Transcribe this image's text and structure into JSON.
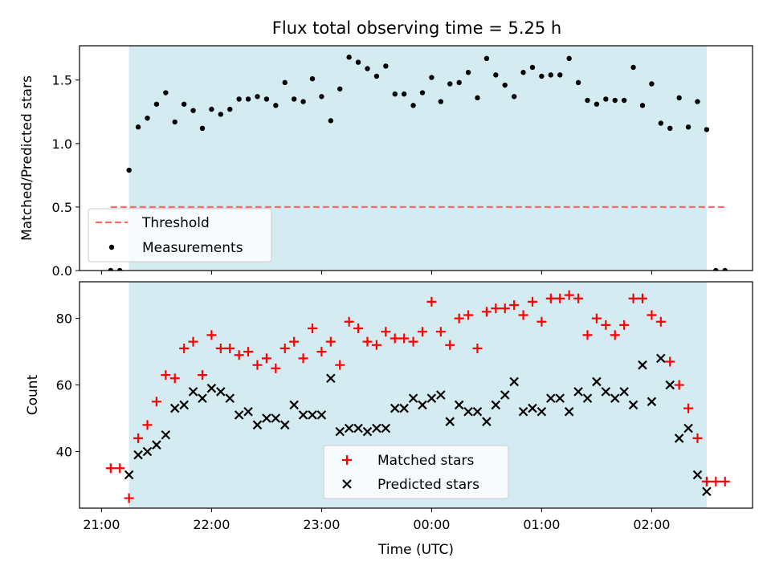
{
  "chart_data": [
    {
      "type": "scatter",
      "title": "Flux total observing time = 5.25 h",
      "xlabel": "",
      "ylabel": "Matched/Predicted stars",
      "ylim": [
        0,
        1.77
      ],
      "yticks": [
        "0.0",
        "0.5",
        "1.0",
        "1.5"
      ],
      "xlim": [
        "20:48",
        "02:55"
      ],
      "xticks_shown": false,
      "observing_window": [
        "21:15",
        "02:30"
      ],
      "shade_color": "#add8e6",
      "threshold": {
        "name": "Threshold",
        "value": 0.5,
        "x": [
          "21:05",
          "02:40"
        ],
        "color": "#ff6b6b",
        "style": "dashed"
      },
      "legend": {
        "placement": "lower-left",
        "entries": [
          "Threshold",
          "Measurements"
        ]
      },
      "series": [
        {
          "name": "Measurements",
          "color": "#000000",
          "marker": "dot",
          "points": [
            [
              "21:05",
              0.0
            ],
            [
              "21:10",
              0.0
            ],
            [
              "21:15",
              0.79
            ],
            [
              "21:20",
              1.13
            ],
            [
              "21:25",
              1.2
            ],
            [
              "21:30",
              1.31
            ],
            [
              "21:35",
              1.4
            ],
            [
              "21:40",
              1.17
            ],
            [
              "21:45",
              1.31
            ],
            [
              "21:50",
              1.26
            ],
            [
              "21:55",
              1.12
            ],
            [
              "22:00",
              1.27
            ],
            [
              "22:05",
              1.23
            ],
            [
              "22:10",
              1.27
            ],
            [
              "22:15",
              1.35
            ],
            [
              "22:20",
              1.35
            ],
            [
              "22:25",
              1.37
            ],
            [
              "22:30",
              1.35
            ],
            [
              "22:35",
              1.3
            ],
            [
              "22:40",
              1.48
            ],
            [
              "22:45",
              1.35
            ],
            [
              "22:50",
              1.33
            ],
            [
              "22:55",
              1.51
            ],
            [
              "23:00",
              1.37
            ],
            [
              "23:05",
              1.18
            ],
            [
              "23:10",
              1.43
            ],
            [
              "23:15",
              1.68
            ],
            [
              "23:20",
              1.64
            ],
            [
              "23:25",
              1.59
            ],
            [
              "23:30",
              1.53
            ],
            [
              "23:35",
              1.61
            ],
            [
              "23:40",
              1.39
            ],
            [
              "23:45",
              1.39
            ],
            [
              "23:50",
              1.3
            ],
            [
              "23:55",
              1.4
            ],
            [
              "00:00",
              1.52
            ],
            [
              "00:05",
              1.33
            ],
            [
              "00:10",
              1.47
            ],
            [
              "00:15",
              1.48
            ],
            [
              "00:20",
              1.56
            ],
            [
              "00:25",
              1.36
            ],
            [
              "00:30",
              1.67
            ],
            [
              "00:35",
              1.54
            ],
            [
              "00:40",
              1.46
            ],
            [
              "00:45",
              1.37
            ],
            [
              "00:50",
              1.56
            ],
            [
              "00:55",
              1.6
            ],
            [
              "01:00",
              1.53
            ],
            [
              "01:05",
              1.54
            ],
            [
              "01:10",
              1.54
            ],
            [
              "01:15",
              1.67
            ],
            [
              "01:20",
              1.48
            ],
            [
              "01:25",
              1.34
            ],
            [
              "01:30",
              1.31
            ],
            [
              "01:35",
              1.35
            ],
            [
              "01:40",
              1.34
            ],
            [
              "01:45",
              1.34
            ],
            [
              "01:50",
              1.6
            ],
            [
              "01:55",
              1.3
            ],
            [
              "02:00",
              1.47
            ],
            [
              "02:05",
              1.16
            ],
            [
              "02:10",
              1.12
            ],
            [
              "02:15",
              1.36
            ],
            [
              "02:20",
              1.13
            ],
            [
              "02:25",
              1.33
            ],
            [
              "02:30",
              1.11
            ],
            [
              "02:35",
              0.0
            ],
            [
              "02:40",
              0.0
            ]
          ]
        }
      ]
    },
    {
      "type": "scatter",
      "title": "",
      "xlabel": "Time (UTC)",
      "ylabel": "Count",
      "ylim": [
        23,
        91
      ],
      "yticks": [
        "40",
        "60",
        "80"
      ],
      "xlim": [
        "20:48",
        "02:55"
      ],
      "xticks": [
        "21:00",
        "22:00",
        "23:00",
        "00:00",
        "01:00",
        "02:00"
      ],
      "observing_window": [
        "21:15",
        "02:30"
      ],
      "shade_color": "#add8e6",
      "legend": {
        "placement": "lower-center",
        "entries": [
          "Matched stars",
          "Predicted stars"
        ]
      },
      "series": [
        {
          "name": "Matched stars",
          "color": "#ff0000",
          "marker": "plus",
          "points": [
            [
              "21:05",
              35
            ],
            [
              "21:10",
              35
            ],
            [
              "21:15",
              26
            ],
            [
              "21:20",
              44
            ],
            [
              "21:25",
              48
            ],
            [
              "21:30",
              55
            ],
            [
              "21:35",
              63
            ],
            [
              "21:40",
              62
            ],
            [
              "21:45",
              71
            ],
            [
              "21:50",
              73
            ],
            [
              "21:55",
              63
            ],
            [
              "22:00",
              75
            ],
            [
              "22:05",
              71
            ],
            [
              "22:10",
              71
            ],
            [
              "22:15",
              69
            ],
            [
              "22:20",
              70
            ],
            [
              "22:25",
              66
            ],
            [
              "22:30",
              68
            ],
            [
              "22:35",
              65
            ],
            [
              "22:40",
              71
            ],
            [
              "22:45",
              73
            ],
            [
              "22:50",
              68
            ],
            [
              "22:55",
              77
            ],
            [
              "23:00",
              70
            ],
            [
              "23:05",
              73
            ],
            [
              "23:10",
              66
            ],
            [
              "23:15",
              79
            ],
            [
              "23:20",
              77
            ],
            [
              "23:25",
              73
            ],
            [
              "23:30",
              72
            ],
            [
              "23:35",
              76
            ],
            [
              "23:40",
              74
            ],
            [
              "23:45",
              74
            ],
            [
              "23:50",
              73
            ],
            [
              "23:55",
              76
            ],
            [
              "00:00",
              85
            ],
            [
              "00:05",
              76
            ],
            [
              "00:10",
              72
            ],
            [
              "00:15",
              80
            ],
            [
              "00:20",
              81
            ],
            [
              "00:25",
              71
            ],
            [
              "00:30",
              82
            ],
            [
              "00:35",
              83
            ],
            [
              "00:40",
              83
            ],
            [
              "00:45",
              84
            ],
            [
              "00:50",
              81
            ],
            [
              "00:55",
              85
            ],
            [
              "01:00",
              79
            ],
            [
              "01:05",
              86
            ],
            [
              "01:10",
              86
            ],
            [
              "01:15",
              87
            ],
            [
              "01:20",
              86
            ],
            [
              "01:25",
              75
            ],
            [
              "01:30",
              80
            ],
            [
              "01:35",
              78
            ],
            [
              "01:40",
              75
            ],
            [
              "01:45",
              78
            ],
            [
              "01:50",
              86
            ],
            [
              "01:55",
              86
            ],
            [
              "02:00",
              81
            ],
            [
              "02:05",
              79
            ],
            [
              "02:10",
              67
            ],
            [
              "02:15",
              60
            ],
            [
              "02:20",
              53
            ],
            [
              "02:25",
              44
            ],
            [
              "02:30",
              31
            ],
            [
              "02:35",
              31
            ],
            [
              "02:40",
              31
            ]
          ]
        },
        {
          "name": "Predicted stars",
          "color": "#000000",
          "marker": "x",
          "points": [
            [
              "21:15",
              33
            ],
            [
              "21:20",
              39
            ],
            [
              "21:25",
              40
            ],
            [
              "21:30",
              42
            ],
            [
              "21:35",
              45
            ],
            [
              "21:40",
              53
            ],
            [
              "21:45",
              54
            ],
            [
              "21:50",
              58
            ],
            [
              "21:55",
              56
            ],
            [
              "22:00",
              59
            ],
            [
              "22:05",
              58
            ],
            [
              "22:10",
              56
            ],
            [
              "22:15",
              51
            ],
            [
              "22:20",
              52
            ],
            [
              "22:25",
              48
            ],
            [
              "22:30",
              50
            ],
            [
              "22:35",
              50
            ],
            [
              "22:40",
              48
            ],
            [
              "22:45",
              54
            ],
            [
              "22:50",
              51
            ],
            [
              "22:55",
              51
            ],
            [
              "23:00",
              51
            ],
            [
              "23:05",
              62
            ],
            [
              "23:10",
              46
            ],
            [
              "23:15",
              47
            ],
            [
              "23:20",
              47
            ],
            [
              "23:25",
              46
            ],
            [
              "23:30",
              47
            ],
            [
              "23:35",
              47
            ],
            [
              "23:40",
              53
            ],
            [
              "23:45",
              53
            ],
            [
              "23:50",
              56
            ],
            [
              "23:55",
              54
            ],
            [
              "00:00",
              56
            ],
            [
              "00:05",
              57
            ],
            [
              "00:10",
              49
            ],
            [
              "00:15",
              54
            ],
            [
              "00:20",
              52
            ],
            [
              "00:25",
              52
            ],
            [
              "00:30",
              49
            ],
            [
              "00:35",
              54
            ],
            [
              "00:40",
              57
            ],
            [
              "00:45",
              61
            ],
            [
              "00:50",
              52
            ],
            [
              "00:55",
              53
            ],
            [
              "01:00",
              52
            ],
            [
              "01:05",
              56
            ],
            [
              "01:10",
              56
            ],
            [
              "01:15",
              52
            ],
            [
              "01:20",
              58
            ],
            [
              "01:25",
              56
            ],
            [
              "01:30",
              61
            ],
            [
              "01:35",
              58
            ],
            [
              "01:40",
              56
            ],
            [
              "01:45",
              58
            ],
            [
              "01:50",
              54
            ],
            [
              "01:55",
              66
            ],
            [
              "02:00",
              55
            ],
            [
              "02:05",
              68
            ],
            [
              "02:10",
              60
            ],
            [
              "02:15",
              44
            ],
            [
              "02:20",
              47
            ],
            [
              "02:25",
              33
            ],
            [
              "02:30",
              28
            ]
          ]
        }
      ]
    }
  ]
}
